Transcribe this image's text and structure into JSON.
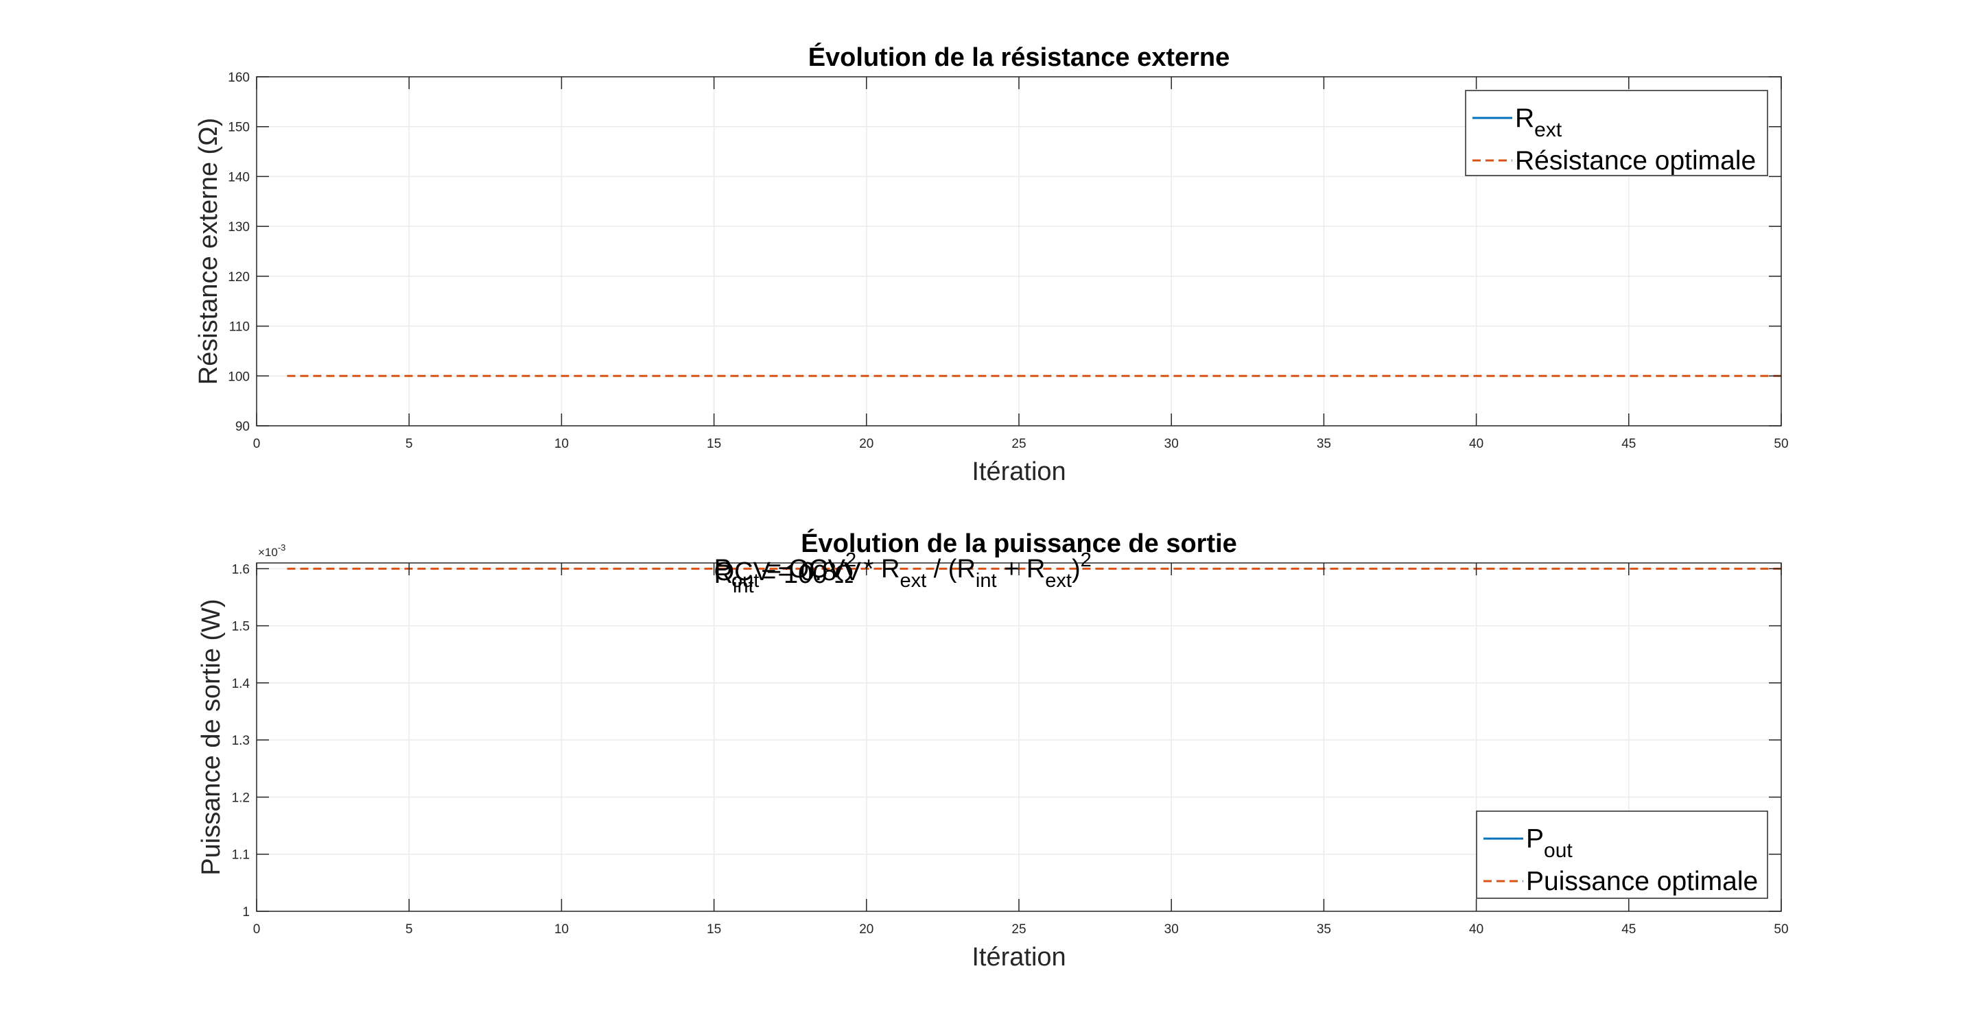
{
  "chart_data": [
    {
      "type": "line",
      "title": "Évolution de la résistance externe",
      "xlabel": "Itération",
      "ylabel": "Résistance externe (Ω)",
      "xlim": [
        0,
        50
      ],
      "ylim": [
        90,
        160
      ],
      "xticks": [
        0,
        5,
        10,
        15,
        20,
        25,
        30,
        35,
        40,
        45,
        50
      ],
      "yticks": [
        90,
        100,
        110,
        120,
        130,
        140,
        150,
        160
      ],
      "grid": true,
      "legend_location": "top-right",
      "series": [
        {
          "name": "R_ext",
          "label_main": "R",
          "label_sub": "ext",
          "color": "#0072BD",
          "style": "solid",
          "x": [],
          "y": []
        },
        {
          "name": "Résistance optimale",
          "label_main": "Résistance optimale",
          "label_sub": "",
          "color": "#D95319",
          "style": "dashed",
          "x": [
            1,
            50
          ],
          "y": [
            100,
            100
          ]
        }
      ]
    },
    {
      "type": "line",
      "title": "Évolution de la puissance de sortie",
      "xlabel": "Itération",
      "ylabel": "Puissance de sortie (W)",
      "xlim": [
        0,
        50
      ],
      "ylim": [
        0.001,
        0.00161
      ],
      "xticks": [
        0,
        5,
        10,
        15,
        20,
        25,
        30,
        35,
        40,
        45,
        50
      ],
      "yticks": [
        1,
        1.1,
        1.2,
        1.3,
        1.4,
        1.5,
        1.6
      ],
      "ytick_scale": 0.001,
      "y_exponent_base": "×10",
      "y_exponent": "-3",
      "grid": true,
      "legend_location": "bottom-right",
      "series": [
        {
          "name": "P_out",
          "label_main": "P",
          "label_sub": "out",
          "color": "#0072BD",
          "style": "solid",
          "x": [],
          "y": []
        },
        {
          "name": "Puissance optimale",
          "label_main": "Puissance optimale",
          "label_sub": "",
          "color": "#D95319",
          "style": "dashed",
          "x": [
            1,
            50
          ],
          "y": [
            0.0016,
            0.0016
          ]
        }
      ],
      "annotations": [
        {
          "x": 15,
          "y": 0.001585,
          "runs": [
            {
              "t": "P",
              "s": ""
            },
            {
              "t": "out",
              "s": "sub"
            },
            {
              "t": " = OCV",
              "s": ""
            },
            {
              "t": "2",
              "s": "sup"
            },
            {
              "t": " * R",
              "s": ""
            },
            {
              "t": "ext",
              "s": "sub"
            },
            {
              "t": " / (R",
              "s": ""
            },
            {
              "t": "int",
              "s": "sub"
            },
            {
              "t": " + R",
              "s": ""
            },
            {
              "t": "ext",
              "s": "sub"
            },
            {
              "t": ")",
              "s": ""
            },
            {
              "t": "2",
              "s": "sup"
            }
          ]
        },
        {
          "x": 15,
          "y": 0.00158,
          "runs": [
            {
              "t": "OCV = 0.8 V",
              "s": ""
            }
          ]
        },
        {
          "x": 15,
          "y": 0.001575,
          "runs": [
            {
              "t": "R",
              "s": ""
            },
            {
              "t": "int",
              "s": "sub"
            },
            {
              "t": " = 100 Ω",
              "s": ""
            }
          ]
        }
      ]
    }
  ]
}
